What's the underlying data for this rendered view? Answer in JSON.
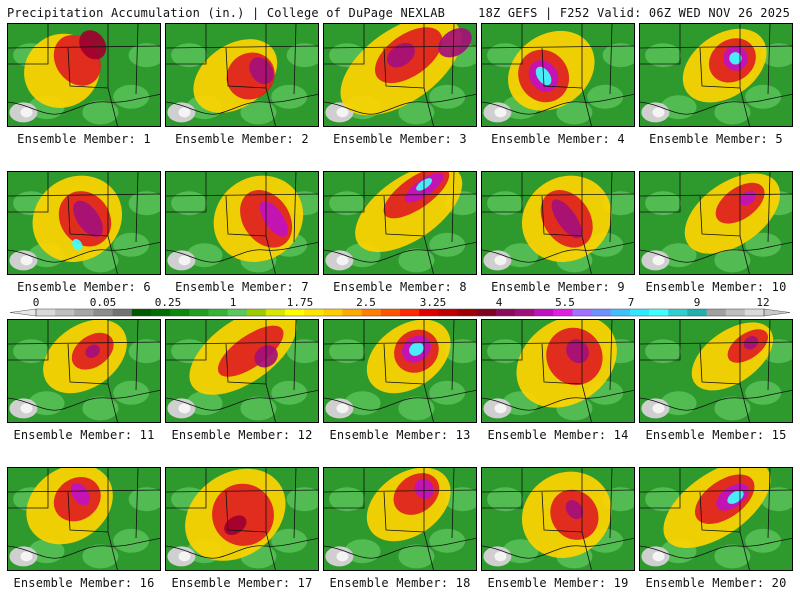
{
  "header": {
    "left": "Precipitation Accumulation (in.) | College of DuPage NEXLAB",
    "right": "18Z GEFS | F252 Valid: 06Z WED NOV 26 2025"
  },
  "panels": [
    {
      "label": "Ensemble Member: 1",
      "blobs": [
        [
          0.35,
          0.45,
          0.25,
          0.35,
          "#ffd400"
        ],
        [
          0.45,
          0.35,
          0.14,
          0.26,
          "#e02020"
        ],
        [
          0.55,
          0.2,
          0.08,
          0.15,
          "#a00030"
        ]
      ]
    },
    {
      "label": "Ensemble Member: 2",
      "blobs": [
        [
          0.45,
          0.5,
          0.3,
          0.3,
          "#ffd400"
        ],
        [
          0.55,
          0.5,
          0.16,
          0.22,
          "#e02020"
        ],
        [
          0.62,
          0.45,
          0.07,
          0.14,
          "#a4107a"
        ]
      ]
    },
    {
      "label": "Ensemble Member: 3",
      "blobs": [
        [
          0.5,
          0.4,
          0.45,
          0.35,
          "#ffd400"
        ],
        [
          0.55,
          0.3,
          0.25,
          0.2,
          "#e02020"
        ],
        [
          0.5,
          0.3,
          0.1,
          0.1,
          "#a4107a"
        ],
        [
          0.85,
          0.18,
          0.12,
          0.12,
          "#a4107a"
        ]
      ]
    },
    {
      "label": "Ensemble Member: 4",
      "blobs": [
        [
          0.45,
          0.45,
          0.3,
          0.35,
          "#ffd400"
        ],
        [
          0.4,
          0.5,
          0.16,
          0.26,
          "#e02020"
        ],
        [
          0.4,
          0.5,
          0.09,
          0.16,
          "#c012c0"
        ],
        [
          0.4,
          0.5,
          0.04,
          0.1,
          "#40ffff"
        ]
      ]
    },
    {
      "label": "Ensemble Member: 5",
      "blobs": [
        [
          0.55,
          0.4,
          0.3,
          0.3,
          "#ffd400"
        ],
        [
          0.6,
          0.35,
          0.16,
          0.2,
          "#e02020"
        ],
        [
          0.62,
          0.33,
          0.08,
          0.12,
          "#c012c0"
        ],
        [
          0.62,
          0.33,
          0.04,
          0.06,
          "#40ffff"
        ]
      ]
    },
    {
      "label": "Ensemble Member: 6",
      "blobs": [
        [
          0.45,
          0.45,
          0.3,
          0.4,
          "#ffd400"
        ],
        [
          0.5,
          0.45,
          0.16,
          0.28,
          "#e02020"
        ],
        [
          0.52,
          0.45,
          0.07,
          0.2,
          "#a4107a"
        ],
        [
          0.45,
          0.7,
          0.03,
          0.06,
          "#40ffff"
        ]
      ]
    },
    {
      "label": "Ensemble Member: 7",
      "blobs": [
        [
          0.6,
          0.45,
          0.3,
          0.4,
          "#ffd400"
        ],
        [
          0.65,
          0.45,
          0.15,
          0.3,
          "#e02020"
        ],
        [
          0.7,
          0.45,
          0.06,
          0.2,
          "#c012c0"
        ]
      ]
    },
    {
      "label": "Ensemble Member: 8",
      "blobs": [
        [
          0.55,
          0.35,
          0.4,
          0.3,
          "#ffd400"
        ],
        [
          0.6,
          0.2,
          0.25,
          0.15,
          "#e02020"
        ],
        [
          0.65,
          0.15,
          0.15,
          0.08,
          "#c012c0"
        ],
        [
          0.65,
          0.12,
          0.06,
          0.04,
          "#40ffff"
        ]
      ]
    },
    {
      "label": "Ensemble Member: 9",
      "blobs": [
        [
          0.55,
          0.45,
          0.3,
          0.4,
          "#ffd400"
        ],
        [
          0.55,
          0.45,
          0.15,
          0.3,
          "#e02020"
        ],
        [
          0.55,
          0.45,
          0.06,
          0.22,
          "#a4107a"
        ]
      ]
    },
    {
      "label": "Ensemble Member: 10",
      "blobs": [
        [
          0.6,
          0.4,
          0.35,
          0.3,
          "#ffd400"
        ],
        [
          0.65,
          0.3,
          0.18,
          0.15,
          "#e02020"
        ],
        [
          0.7,
          0.25,
          0.06,
          0.06,
          "#c012c0"
        ]
      ]
    },
    {
      "label": "Ensemble Member: 11",
      "blobs": [
        [
          0.5,
          0.35,
          0.3,
          0.3,
          "#ffd400"
        ],
        [
          0.55,
          0.3,
          0.15,
          0.15,
          "#e02020"
        ],
        [
          0.55,
          0.3,
          0.05,
          0.06,
          "#a4107a"
        ]
      ]
    },
    {
      "label": "Ensemble Member: 12",
      "blobs": [
        [
          0.5,
          0.3,
          0.4,
          0.3,
          "#ffd400"
        ],
        [
          0.55,
          0.3,
          0.25,
          0.15,
          "#e02020"
        ],
        [
          0.65,
          0.35,
          0.08,
          0.1,
          "#a4107a"
        ]
      ]
    },
    {
      "label": "Ensemble Member: 13",
      "blobs": [
        [
          0.55,
          0.35,
          0.3,
          0.3,
          "#ffd400"
        ],
        [
          0.6,
          0.3,
          0.15,
          0.2,
          "#e02020"
        ],
        [
          0.6,
          0.28,
          0.1,
          0.12,
          "#c012c0"
        ],
        [
          0.6,
          0.28,
          0.05,
          0.06,
          "#40ffff"
        ]
      ]
    },
    {
      "label": "Ensemble Member: 14",
      "blobs": [
        [
          0.55,
          0.4,
          0.35,
          0.4,
          "#ffd400"
        ],
        [
          0.6,
          0.35,
          0.18,
          0.28,
          "#e02020"
        ],
        [
          0.62,
          0.3,
          0.07,
          0.12,
          "#a4107a"
        ]
      ]
    },
    {
      "label": "Ensemble Member: 15",
      "blobs": [
        [
          0.6,
          0.35,
          0.3,
          0.25,
          "#ffd400"
        ],
        [
          0.7,
          0.25,
          0.15,
          0.12,
          "#e02020"
        ],
        [
          0.72,
          0.22,
          0.05,
          0.06,
          "#a4107a"
        ]
      ]
    },
    {
      "label": "Ensemble Member: 16",
      "blobs": [
        [
          0.4,
          0.35,
          0.3,
          0.35,
          "#ffd400"
        ],
        [
          0.45,
          0.3,
          0.16,
          0.2,
          "#e02020"
        ],
        [
          0.47,
          0.25,
          0.05,
          0.12,
          "#c012c0"
        ]
      ]
    },
    {
      "label": "Ensemble Member: 17",
      "blobs": [
        [
          0.45,
          0.45,
          0.35,
          0.4,
          "#ffd400"
        ],
        [
          0.5,
          0.45,
          0.2,
          0.3,
          "#e02020"
        ],
        [
          0.45,
          0.55,
          0.08,
          0.08,
          "#a00030"
        ]
      ]
    },
    {
      "label": "Ensemble Member: 18",
      "blobs": [
        [
          0.55,
          0.35,
          0.3,
          0.3,
          "#ffd400"
        ],
        [
          0.6,
          0.25,
          0.16,
          0.18,
          "#e02020"
        ],
        [
          0.65,
          0.2,
          0.06,
          0.1,
          "#c012c0"
        ]
      ]
    },
    {
      "label": "Ensemble Member: 19",
      "blobs": [
        [
          0.55,
          0.45,
          0.3,
          0.4,
          "#ffd400"
        ],
        [
          0.6,
          0.45,
          0.15,
          0.25,
          "#e02020"
        ],
        [
          0.6,
          0.4,
          0.05,
          0.1,
          "#a4107a"
        ]
      ]
    },
    {
      "label": "Ensemble Member: 20",
      "blobs": [
        [
          0.5,
          0.35,
          0.4,
          0.3,
          "#ffd400"
        ],
        [
          0.55,
          0.3,
          0.22,
          0.18,
          "#e02020"
        ],
        [
          0.6,
          0.28,
          0.12,
          0.1,
          "#c012c0"
        ],
        [
          0.62,
          0.28,
          0.06,
          0.05,
          "#40ffff"
        ]
      ]
    }
  ],
  "colorbar": {
    "ticks": [
      "0",
      "0.05",
      "0.25",
      "1",
      "1.75",
      "2.5",
      "3.25",
      "4",
      "5.5",
      "7",
      "9",
      "12"
    ],
    "colors": [
      "#d9d9d9",
      "#bfbfbf",
      "#a6a6a6",
      "#8c8c8c",
      "#737373",
      "#005a00",
      "#006e00",
      "#0a8a0a",
      "#1ea01e",
      "#36b436",
      "#5ac85a",
      "#9ccc00",
      "#d9e600",
      "#ffff00",
      "#ffe600",
      "#ffcc00",
      "#ffaa00",
      "#ff8000",
      "#ff5500",
      "#ff2a00",
      "#e00000",
      "#c00000",
      "#a00000",
      "#800020",
      "#8b0a5a",
      "#a0107a",
      "#c012c0",
      "#e020e0",
      "#a070ff",
      "#7090ff",
      "#40c0ff",
      "#30e8ff",
      "#40ffff",
      "#30d0d0",
      "#20b0b0",
      "#a0a0a0",
      "#bdbdbd",
      "#dadada"
    ]
  }
}
